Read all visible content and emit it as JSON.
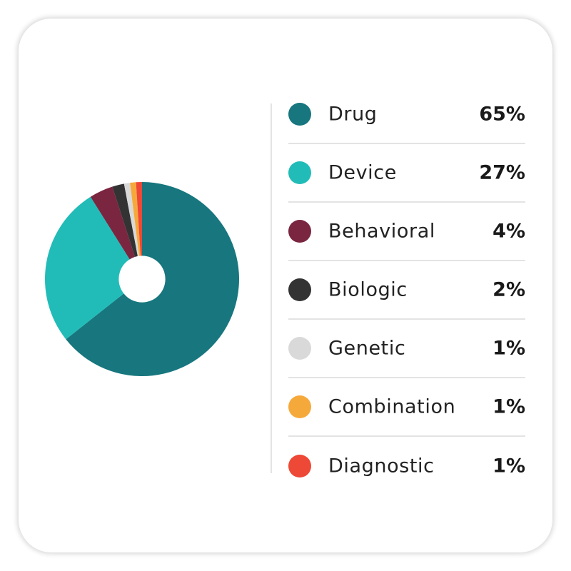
{
  "chart_data": {
    "type": "pie",
    "categories": [
      "Drug",
      "Device",
      "Behavioral",
      "Biologic",
      "Genetic",
      "Combination",
      "Diagnostic"
    ],
    "values": [
      65,
      27,
      4,
      2,
      1,
      1,
      1
    ],
    "labels": [
      "65%",
      "27%",
      "4%",
      "2%",
      "1%",
      "1%",
      "1%"
    ],
    "colors": [
      "#17767e",
      "#21bcb8",
      "#7a2640",
      "#333333",
      "#d9d9d9",
      "#f6a93b",
      "#ee4836"
    ],
    "donut_hole_ratio": 0.24,
    "legend_position": "right"
  }
}
